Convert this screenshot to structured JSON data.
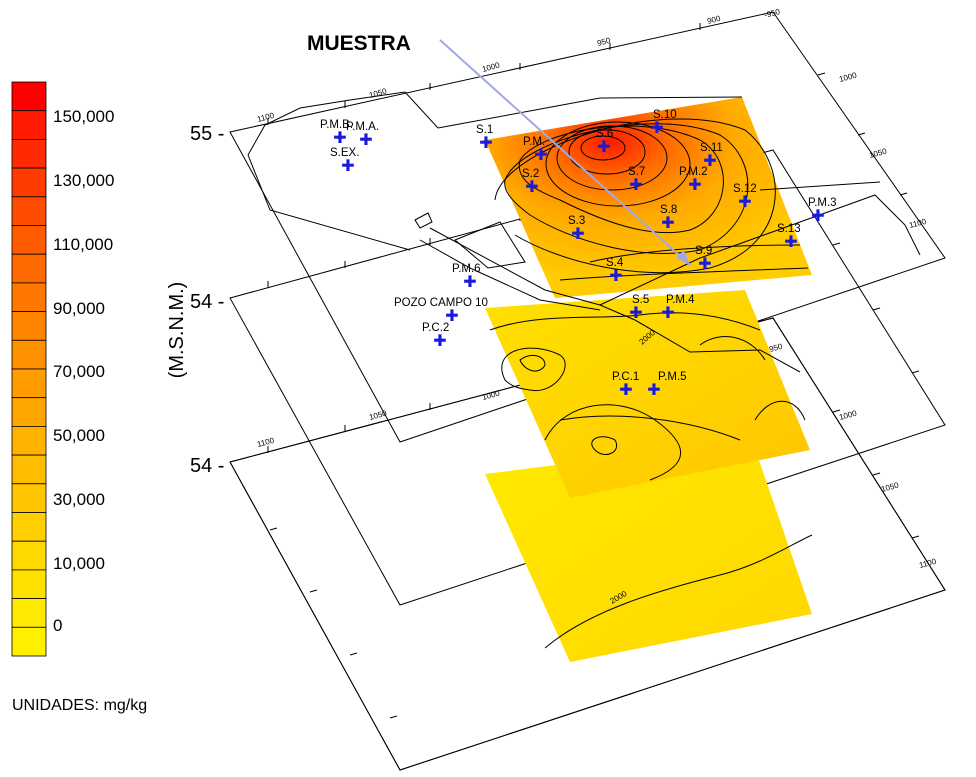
{
  "title": "MUESTRA",
  "y_axis_label": "(M.S.N.M.)",
  "units_label": "UNIDADES: mg/kg",
  "legend": {
    "labels": [
      "150,000",
      "130,000",
      "110,000",
      "90,000",
      "70,000",
      "50,000",
      "30,000",
      "10,000",
      "0"
    ],
    "colors": [
      "#ff0000",
      "#ff1a00",
      "#ff2a00",
      "#ff3b00",
      "#ff4d00",
      "#ff5c00",
      "#ff6a00",
      "#ff7700",
      "#ff8400",
      "#ff9100",
      "#ff9c00",
      "#ffa700",
      "#ffb200",
      "#ffbd00",
      "#ffc600",
      "#ffcf00",
      "#ffd800",
      "#ffe100",
      "#ffe900",
      "#fff000"
    ]
  },
  "elevation_labels": [
    "55 -",
    "54 -",
    "54 -"
  ],
  "contour_labels": [
    "2000",
    "2000"
  ],
  "tick_labels": [
    "1100",
    "1050",
    "1000",
    "950",
    "900",
    "-950"
  ],
  "sites": [
    {
      "name": "P.M.B",
      "label": "P.M.B."
    },
    {
      "name": "P.M.A",
      "label": "P.M.A."
    },
    {
      "name": "S.EX",
      "label": "S.EX."
    },
    {
      "name": "S.1",
      "label": "S.1"
    },
    {
      "name": "P.M",
      "label": "P.M."
    },
    {
      "name": "S.6",
      "label": "S.6"
    },
    {
      "name": "S.10",
      "label": "S.10"
    },
    {
      "name": "S.11",
      "label": "S.11"
    },
    {
      "name": "S.2",
      "label": "S.2"
    },
    {
      "name": "S.7",
      "label": "S.7"
    },
    {
      "name": "P.M.2",
      "label": "P.M.2"
    },
    {
      "name": "S.12",
      "label": "S.12"
    },
    {
      "name": "P.M.3",
      "label": "P.M.3"
    },
    {
      "name": "S.8",
      "label": "S.8"
    },
    {
      "name": "S.3",
      "label": "S.3"
    },
    {
      "name": "S.13",
      "label": "S.13"
    },
    {
      "name": "S.9",
      "label": "S.9"
    },
    {
      "name": "S.4",
      "label": "S.4"
    },
    {
      "name": "P.M.6",
      "label": "P.M.6"
    },
    {
      "name": "S.5",
      "label": "S.5"
    },
    {
      "name": "P.M.4",
      "label": "P.M.4"
    },
    {
      "name": "POZO CAMPO 10",
      "label": "POZO CAMPO 10"
    },
    {
      "name": "P.C.2",
      "label": "P.C.2"
    },
    {
      "name": "P.C.1",
      "label": "P.C.1"
    },
    {
      "name": "P.M.5",
      "label": "P.M.5"
    }
  ]
}
